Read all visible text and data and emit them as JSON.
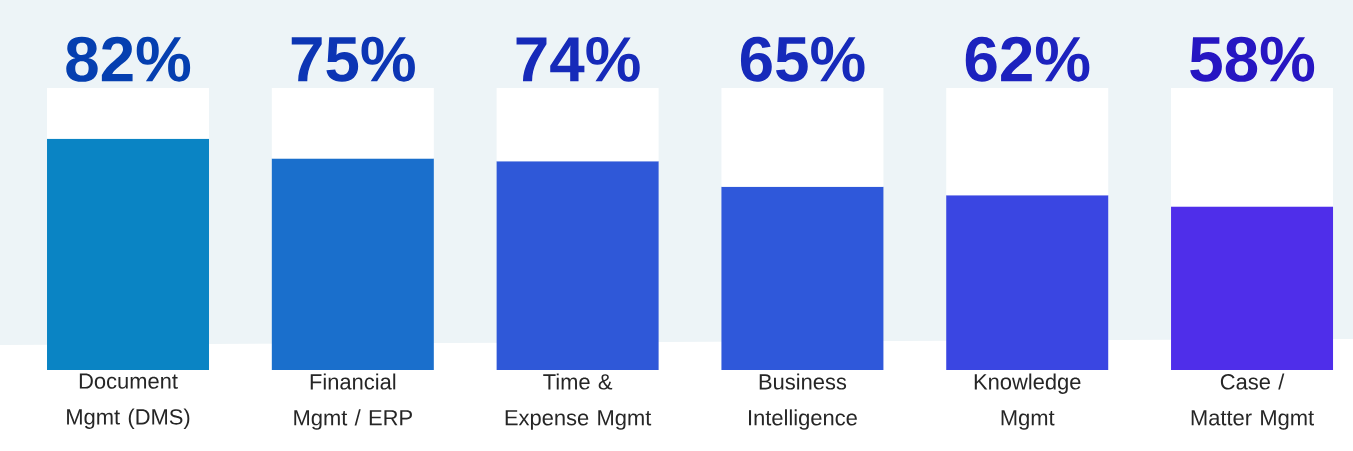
{
  "chart_data": {
    "type": "bar",
    "categories": [
      "Document Mgmt (DMS)",
      "Financial Mgmt / ERP",
      "Time & Expense Mgmt",
      "Business Intelligence",
      "Knowledge Mgmt",
      "Case / Matter Mgmt"
    ],
    "stacked": true,
    "series": [
      {
        "values": [
          82,
          75,
          74,
          65,
          62,
          58
        ],
        "value_labels": [
          "82%",
          "75%",
          "74%",
          "65%",
          "62%",
          "58%"
        ],
        "colors": [
          "#0a84c4",
          "#1a6fcc",
          "#2f58d8",
          "#2f58da",
          "#3a46e2",
          "#4f2eea"
        ]
      },
      {
        "values": [
          18,
          25,
          26,
          35,
          38,
          42
        ],
        "color": "#ffffff"
      }
    ],
    "ylim": [
      0,
      100
    ]
  }
}
